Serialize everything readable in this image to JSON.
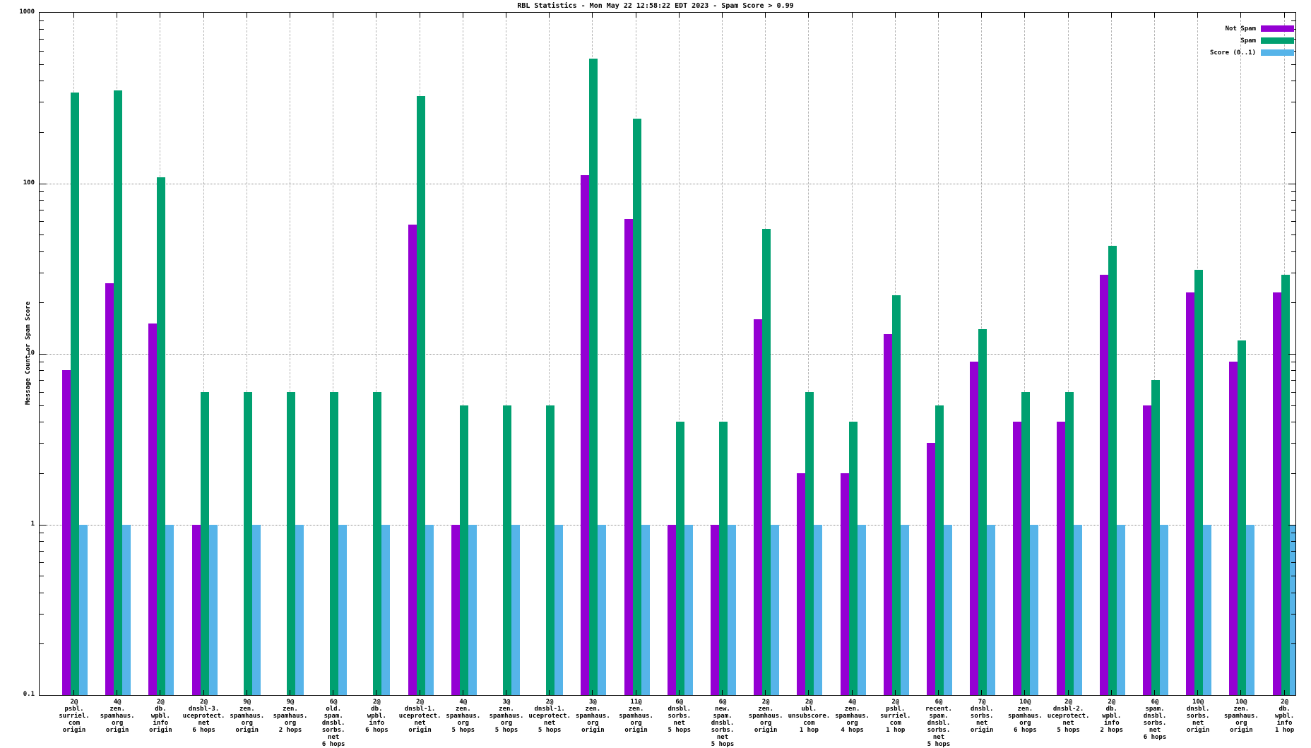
{
  "chart_data": {
    "type": "bar",
    "title": "RBL Statistics - Mon May 22 12:58:22 EDT 2023 - Spam Score > 0.99",
    "ylabel": "Message Count or Spam Score",
    "xlabel": "",
    "y_scale": "log",
    "ylim": [
      0.1,
      1000
    ],
    "y_ticks": [
      "1000",
      "100",
      "10",
      "1",
      "0.1"
    ],
    "grid": true,
    "legend_position": "top-right",
    "categories": [
      [
        "2@",
        "psbl.",
        "surriel.",
        "com",
        "origin"
      ],
      [
        "4@",
        "zen.",
        "spamhaus.",
        "org",
        "origin"
      ],
      [
        "2@",
        "db.",
        "wpbl.",
        "info",
        "origin"
      ],
      [
        "2@",
        "dnsbl-3.",
        "uceprotect.",
        "net",
        "6 hops"
      ],
      [
        "9@",
        "zen.",
        "spamhaus.",
        "org",
        "origin"
      ],
      [
        "9@",
        "zen.",
        "spamhaus.",
        "org",
        "2 hops"
      ],
      [
        "6@",
        "old.",
        "spam.",
        "dnsbl.",
        "sorbs.",
        "net",
        "6 hops"
      ],
      [
        "2@",
        "db.",
        "wpbl.",
        "info",
        "6 hops"
      ],
      [
        "2@",
        "dnsbl-1.",
        "uceprotect.",
        "net",
        "origin"
      ],
      [
        "4@",
        "zen.",
        "spamhaus.",
        "org",
        "5 hops"
      ],
      [
        "3@",
        "zen.",
        "spamhaus.",
        "org",
        "5 hops"
      ],
      [
        "2@",
        "dnsbl-1.",
        "uceprotect.",
        "net",
        "5 hops"
      ],
      [
        "3@",
        "zen.",
        "spamhaus.",
        "org",
        "origin"
      ],
      [
        "11@",
        "zen.",
        "spamhaus.",
        "org",
        "origin"
      ],
      [
        "6@",
        "dnsbl.",
        "sorbs.",
        "net",
        "5 hops"
      ],
      [
        "6@",
        "new.",
        "spam.",
        "dnsbl.",
        "sorbs.",
        "net",
        "5 hops"
      ],
      [
        "2@",
        "zen.",
        "spamhaus.",
        "org",
        "origin"
      ],
      [
        "2@",
        "ubl.",
        "unsubscore.",
        "com",
        "1 hop"
      ],
      [
        "4@",
        "zen.",
        "spamhaus.",
        "org",
        "4 hops"
      ],
      [
        "2@",
        "psbl.",
        "surriel.",
        "com",
        "1 hop"
      ],
      [
        "6@",
        "recent.",
        "spam.",
        "dnsbl.",
        "sorbs.",
        "net",
        "5 hops"
      ],
      [
        "7@",
        "dnsbl.",
        "sorbs.",
        "net",
        "origin"
      ],
      [
        "10@",
        "zen.",
        "spamhaus.",
        "org",
        "6 hops"
      ],
      [
        "2@",
        "dnsbl-2.",
        "uceprotect.",
        "net",
        "5 hops"
      ],
      [
        "2@",
        "db.",
        "wpbl.",
        "info",
        "2 hops"
      ],
      [
        "6@",
        "spam.",
        "dnsbl.",
        "sorbs.",
        "net",
        "6 hops"
      ],
      [
        "10@",
        "dnsbl.",
        "sorbs.",
        "net",
        "origin"
      ],
      [
        "10@",
        "zen.",
        "spamhaus.",
        "org",
        "origin"
      ],
      [
        "2@",
        "db.",
        "wpbl.",
        "info",
        "1 hop"
      ]
    ],
    "series": [
      {
        "name": "Not Spam",
        "color": "#9400d3",
        "values": [
          8,
          26,
          15,
          1,
          0,
          0,
          0,
          0,
          57,
          1,
          0,
          0,
          112,
          62,
          1,
          1,
          16,
          2,
          2,
          13,
          3,
          9,
          4,
          4,
          29,
          5,
          23,
          9,
          23
        ]
      },
      {
        "name": "Spam",
        "color": "#00a070",
        "values": [
          340,
          350,
          108,
          6,
          6,
          6,
          6,
          6,
          325,
          5,
          5,
          5,
          540,
          240,
          4,
          4,
          54,
          6,
          4,
          22,
          5,
          14,
          6,
          6,
          43,
          7,
          31,
          12,
          29
        ]
      },
      {
        "name": "Score (0..1)",
        "color": "#56b4e9",
        "values": [
          1,
          1,
          1,
          1,
          1,
          1,
          1,
          1,
          1,
          1,
          1,
          1,
          1,
          1,
          1,
          1,
          1,
          1,
          1,
          1,
          1,
          1,
          1,
          1,
          1,
          1,
          1,
          1,
          1
        ]
      }
    ],
    "grid_colors": {
      "horizontal": "#8c8c8c",
      "vertical": "#b4b4b4"
    }
  }
}
